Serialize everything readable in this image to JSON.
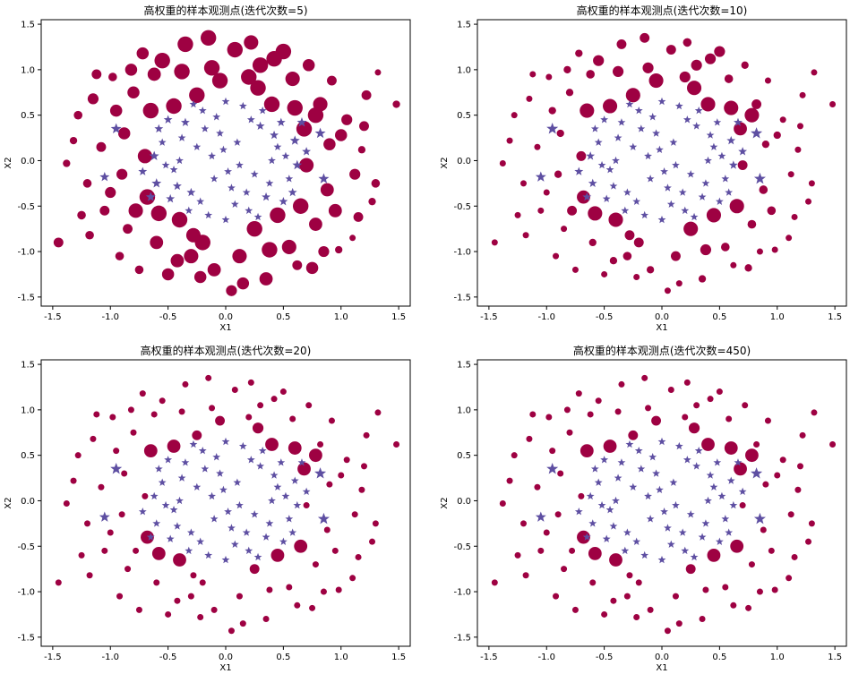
{
  "colors": {
    "class_dot": "#9e0142",
    "class_star": "#5e4fa2",
    "frame": "#000000",
    "background": "#ffffff"
  },
  "chart_data": [
    {
      "type": "scatter",
      "title": "高权重的样本观测点(迭代次数=5)",
      "xlabel": "X1",
      "ylabel": "X2",
      "xlim": [
        -1.6,
        1.6
      ],
      "ylim": [
        -1.6,
        1.55
      ],
      "xticks": [
        "-1.5",
        "-1.0",
        "-0.5",
        "0.0",
        "0.5",
        "1.0",
        "1.5"
      ],
      "yticks": [
        "-1.5",
        "-1.0",
        "-0.5",
        "0.0",
        "0.5",
        "1.0",
        "1.5"
      ],
      "marker_size_range": "large"
    },
    {
      "type": "scatter",
      "title": "高权重的样本观测点(迭代次数=10)",
      "xlabel": "X1",
      "ylabel": "X2",
      "xlim": [
        -1.6,
        1.6
      ],
      "ylim": [
        -1.6,
        1.55
      ],
      "xticks": [
        "-1.5",
        "-1.0",
        "-0.5",
        "0.0",
        "0.5",
        "1.0",
        "1.5"
      ],
      "yticks": [
        "-1.5",
        "-1.0",
        "-0.5",
        "0.0",
        "0.5",
        "1.0",
        "1.5"
      ],
      "marker_size_range": "medium"
    },
    {
      "type": "scatter",
      "title": "高权重的样本观测点(迭代次数=20)",
      "xlabel": "X1",
      "ylabel": "X2",
      "xlim": [
        -1.6,
        1.6
      ],
      "ylim": [
        -1.6,
        1.55
      ],
      "xticks": [
        "-1.5",
        "-1.0",
        "-0.5",
        "0.0",
        "0.5",
        "1.0",
        "1.5"
      ],
      "yticks": [
        "-1.5",
        "-1.0",
        "-0.5",
        "0.0",
        "0.5",
        "1.0",
        "1.5"
      ],
      "marker_size_range": "small"
    },
    {
      "type": "scatter",
      "title": "高权重的样本观测点(迭代次数=450)",
      "xlabel": "X1",
      "ylabel": "X2",
      "xlim": [
        -1.6,
        1.6
      ],
      "ylim": [
        -1.6,
        1.55
      ],
      "xticks": [
        "-1.5",
        "-1.0",
        "-0.5",
        "0.0",
        "0.5",
        "1.0",
        "1.5"
      ],
      "yticks": [
        "-1.5",
        "-1.0",
        "-0.5",
        "0.0",
        "0.5",
        "1.0",
        "1.5"
      ],
      "marker_size_range": "small"
    }
  ],
  "samples": {
    "dot_class": [
      [
        -1.45,
        -0.9
      ],
      [
        1.48,
        0.62
      ],
      [
        -1.38,
        -0.03
      ],
      [
        1.32,
        0.97
      ],
      [
        -1.28,
        0.5
      ],
      [
        1.27,
        -0.45
      ],
      [
        -1.2,
        -0.25
      ],
      [
        1.18,
        0.12
      ],
      [
        -1.15,
        0.68
      ],
      [
        1.1,
        -0.85
      ],
      [
        -1.05,
        -0.55
      ],
      [
        1.05,
        0.45
      ],
      [
        -0.98,
        0.92
      ],
      [
        0.98,
        -0.98
      ],
      [
        -0.92,
        -1.05
      ],
      [
        0.92,
        0.88
      ],
      [
        -0.88,
        0.3
      ],
      [
        0.88,
        -0.32
      ],
      [
        -0.85,
        -0.75
      ],
      [
        0.82,
        0.62
      ],
      [
        -0.8,
        0.75
      ],
      [
        0.78,
        -0.7
      ],
      [
        -0.75,
        -1.2
      ],
      [
        0.72,
        1.05
      ],
      [
        -0.7,
        0.05
      ],
      [
        0.7,
        -0.05
      ],
      [
        -0.68,
        -0.4
      ],
      [
        0.68,
        0.35
      ],
      [
        -0.62,
        0.95
      ],
      [
        0.62,
        -1.15
      ],
      [
        -0.6,
        -0.9
      ],
      [
        0.58,
        0.9
      ],
      [
        -0.55,
        1.1
      ],
      [
        0.55,
        -0.95
      ],
      [
        -0.5,
        -1.25
      ],
      [
        0.5,
        1.2
      ],
      [
        -0.45,
        0.6
      ],
      [
        0.45,
        -0.6
      ],
      [
        -0.4,
        -0.65
      ],
      [
        0.4,
        0.62
      ],
      [
        -0.35,
        1.28
      ],
      [
        0.35,
        -1.3
      ],
      [
        -0.3,
        -1.05
      ],
      [
        0.3,
        1.05
      ],
      [
        -0.25,
        0.72
      ],
      [
        0.25,
        -0.75
      ],
      [
        -0.2,
        -0.9
      ],
      [
        0.2,
        0.92
      ],
      [
        -0.15,
        1.35
      ],
      [
        0.15,
        -1.35
      ],
      [
        -0.1,
        -1.2
      ],
      [
        0.08,
        1.22
      ],
      [
        -0.05,
        0.88
      ],
      [
        0.05,
        -1.43
      ],
      [
        -1.08,
        0.15
      ],
      [
        1.12,
        -0.15
      ],
      [
        -1.0,
        -0.35
      ],
      [
        1.0,
        0.28
      ],
      [
        -0.95,
        0.55
      ],
      [
        0.95,
        -0.55
      ],
      [
        -1.25,
        -0.6
      ],
      [
        1.22,
        0.72
      ],
      [
        -1.12,
        0.95
      ],
      [
        1.15,
        -0.62
      ],
      [
        -0.9,
        -0.15
      ],
      [
        0.9,
        0.18
      ],
      [
        -0.82,
        1.0
      ],
      [
        0.85,
        -1.0
      ],
      [
        -0.78,
        -0.55
      ],
      [
        0.78,
        0.5
      ],
      [
        -0.65,
        0.55
      ],
      [
        0.65,
        -0.5
      ],
      [
        -0.58,
        -0.58
      ],
      [
        0.6,
        0.58
      ],
      [
        -0.42,
        -1.1
      ],
      [
        0.42,
        1.12
      ],
      [
        -0.38,
        0.98
      ],
      [
        0.38,
        -0.98
      ],
      [
        -0.22,
        -1.28
      ],
      [
        0.22,
        1.3
      ],
      [
        -0.12,
        1.02
      ],
      [
        0.12,
        -1.05
      ],
      [
        -1.32,
        0.22
      ],
      [
        1.3,
        -0.25
      ],
      [
        -1.18,
        -0.82
      ],
      [
        1.2,
        0.38
      ],
      [
        -0.72,
        1.18
      ],
      [
        0.75,
        -1.18
      ],
      [
        -0.28,
        -0.82
      ],
      [
        0.28,
        0.8
      ]
    ],
    "star_class": [
      [
        -0.55,
        0.2
      ],
      [
        0.55,
        -0.2
      ],
      [
        -0.45,
        -0.1
      ],
      [
        0.45,
        0.15
      ],
      [
        -0.35,
        0.42
      ],
      [
        0.35,
        -0.4
      ],
      [
        -0.3,
        -0.35
      ],
      [
        0.3,
        0.38
      ],
      [
        -0.2,
        0.55
      ],
      [
        0.2,
        -0.55
      ],
      [
        -0.15,
        -0.6
      ],
      [
        0.15,
        0.6
      ],
      [
        -0.05,
        0.3
      ],
      [
        0.05,
        -0.3
      ],
      [
        0.0,
        0.65
      ],
      [
        0.0,
        -0.65
      ],
      [
        -0.6,
        -0.25
      ],
      [
        0.6,
        0.22
      ],
      [
        -0.4,
        0.0
      ],
      [
        0.4,
        0.0
      ],
      [
        -0.25,
        0.15
      ],
      [
        0.25,
        -0.15
      ],
      [
        -0.1,
        -0.2
      ],
      [
        0.1,
        0.2
      ],
      [
        -0.5,
        0.45
      ],
      [
        0.5,
        -0.45
      ],
      [
        -0.48,
        -0.42
      ],
      [
        0.48,
        0.42
      ],
      [
        -0.18,
        0.35
      ],
      [
        0.18,
        -0.35
      ],
      [
        -0.32,
        -0.55
      ],
      [
        0.32,
        0.55
      ],
      [
        -0.62,
        0.05
      ],
      [
        0.62,
        -0.05
      ],
      [
        -0.08,
        0.48
      ],
      [
        0.08,
        -0.48
      ],
      [
        -0.38,
        0.25
      ],
      [
        0.38,
        -0.25
      ],
      [
        -0.22,
        -0.45
      ],
      [
        0.22,
        0.45
      ],
      [
        -0.52,
        -0.05
      ],
      [
        0.52,
        0.05
      ],
      [
        -0.12,
        0.05
      ],
      [
        0.12,
        -0.05
      ],
      [
        -0.28,
        0.62
      ],
      [
        0.28,
        -0.62
      ],
      [
        -0.42,
        -0.28
      ],
      [
        0.42,
        0.28
      ],
      [
        -1.05,
        -0.18
      ],
      [
        0.82,
        0.3
      ],
      [
        -0.95,
        0.35
      ],
      [
        0.85,
        -0.2
      ],
      [
        -0.72,
        -0.12
      ],
      [
        0.7,
        0.1
      ],
      [
        -0.02,
        0.12
      ],
      [
        0.02,
        -0.12
      ],
      [
        -0.58,
        0.35
      ],
      [
        0.58,
        -0.35
      ],
      [
        -0.65,
        -0.4
      ],
      [
        0.66,
        0.42
      ]
    ],
    "weights": {
      "dot_class": [
        [
          0.5,
          0.3,
          0.3,
          0.2,
          0.4,
          0.3,
          0.4,
          0.3,
          0.6,
          0.2,
          0.5,
          0.6,
          0.4,
          0.3,
          0.4,
          0.5,
          0.7,
          0.8,
          0.5,
          0.9,
          0.7,
          0.8,
          0.4,
          0.7,
          0.9,
          0.9,
          1.0,
          1.0,
          0.8,
          0.5,
          0.8,
          0.9,
          1.0,
          0.9,
          0.7,
          1.0,
          1.0,
          1.0,
          1.0,
          1.0,
          1.0,
          0.8,
          0.9,
          1.0,
          1.0,
          1.0,
          1.0,
          1.0,
          1.0,
          0.7,
          0.8,
          1.0,
          1.0,
          0.6,
          0.5,
          0.6,
          0.6,
          0.7,
          0.7,
          0.8,
          0.4,
          0.5,
          0.5,
          0.5,
          0.6,
          0.7,
          0.7,
          0.6,
          0.9,
          1.0,
          1.0,
          1.0,
          1.0,
          1.0,
          0.8,
          1.0,
          1.0,
          1.0,
          0.7,
          0.9,
          1.0,
          0.9,
          0.3,
          0.4,
          0.4,
          0.5,
          0.7,
          0.7,
          0.9,
          1.0
        ],
        [
          0.2,
          0.2,
          0.2,
          0.2,
          0.2,
          0.2,
          0.2,
          0.2,
          0.2,
          0.2,
          0.2,
          0.2,
          0.2,
          0.2,
          0.2,
          0.2,
          0.3,
          0.4,
          0.2,
          0.5,
          0.3,
          0.4,
          0.2,
          0.3,
          0.5,
          0.5,
          0.8,
          0.8,
          0.4,
          0.2,
          0.3,
          0.4,
          0.6,
          0.4,
          0.2,
          0.6,
          0.9,
          0.9,
          0.9,
          0.9,
          0.5,
          0.3,
          0.4,
          0.6,
          0.9,
          0.9,
          0.5,
          0.6,
          0.5,
          0.2,
          0.3,
          0.5,
          0.9,
          0.2,
          0.2,
          0.2,
          0.2,
          0.3,
          0.3,
          0.4,
          0.2,
          0.2,
          0.2,
          0.2,
          0.3,
          0.3,
          0.3,
          0.2,
          0.5,
          0.9,
          0.9,
          0.9,
          0.9,
          0.9,
          0.3,
          0.6,
          0.6,
          0.6,
          0.2,
          0.4,
          0.6,
          0.5,
          0.2,
          0.2,
          0.2,
          0.2,
          0.3,
          0.3,
          0.5,
          0.9
        ],
        [
          0.2,
          0.2,
          0.2,
          0.2,
          0.2,
          0.2,
          0.2,
          0.2,
          0.2,
          0.2,
          0.2,
          0.2,
          0.2,
          0.2,
          0.2,
          0.2,
          0.2,
          0.2,
          0.2,
          0.2,
          0.2,
          0.2,
          0.2,
          0.2,
          0.2,
          0.2,
          0.8,
          0.8,
          0.2,
          0.2,
          0.2,
          0.2,
          0.2,
          0.2,
          0.2,
          0.2,
          0.8,
          0.8,
          0.8,
          0.8,
          0.2,
          0.2,
          0.2,
          0.2,
          0.5,
          0.5,
          0.2,
          0.2,
          0.2,
          0.2,
          0.2,
          0.2,
          0.5,
          0.2,
          0.2,
          0.2,
          0.2,
          0.2,
          0.2,
          0.2,
          0.2,
          0.2,
          0.2,
          0.2,
          0.2,
          0.2,
          0.2,
          0.2,
          0.2,
          0.8,
          0.8,
          0.8,
          0.8,
          0.8,
          0.2,
          0.2,
          0.2,
          0.2,
          0.2,
          0.2,
          0.2,
          0.2,
          0.2,
          0.2,
          0.2,
          0.2,
          0.2,
          0.2,
          0.2,
          0.6
        ],
        [
          0.2,
          0.2,
          0.2,
          0.2,
          0.2,
          0.2,
          0.2,
          0.2,
          0.2,
          0.2,
          0.2,
          0.2,
          0.2,
          0.2,
          0.2,
          0.2,
          0.2,
          0.2,
          0.2,
          0.2,
          0.2,
          0.2,
          0.2,
          0.2,
          0.2,
          0.2,
          0.8,
          0.8,
          0.2,
          0.2,
          0.2,
          0.2,
          0.2,
          0.2,
          0.2,
          0.2,
          0.8,
          0.8,
          0.8,
          0.8,
          0.2,
          0.2,
          0.2,
          0.2,
          0.5,
          0.5,
          0.2,
          0.2,
          0.2,
          0.2,
          0.2,
          0.2,
          0.5,
          0.2,
          0.2,
          0.2,
          0.2,
          0.2,
          0.2,
          0.2,
          0.2,
          0.2,
          0.2,
          0.2,
          0.2,
          0.2,
          0.2,
          0.2,
          0.2,
          0.8,
          0.8,
          0.8,
          0.8,
          0.8,
          0.2,
          0.2,
          0.2,
          0.2,
          0.2,
          0.2,
          0.2,
          0.2,
          0.2,
          0.2,
          0.2,
          0.2,
          0.2,
          0.2,
          0.2,
          0.6
        ]
      ],
      "star_class": [
        [
          0.3,
          0.3,
          0.3,
          0.3,
          0.4,
          0.4,
          0.4,
          0.4,
          0.3,
          0.3,
          0.3,
          0.3,
          0.3,
          0.3,
          0.3,
          0.3,
          0.5,
          0.5,
          0.3,
          0.3,
          0.3,
          0.3,
          0.3,
          0.3,
          0.4,
          0.4,
          0.4,
          0.4,
          0.3,
          0.3,
          0.3,
          0.3,
          0.5,
          0.5,
          0.3,
          0.3,
          0.3,
          0.3,
          0.3,
          0.3,
          0.3,
          0.3,
          0.3,
          0.3,
          0.3,
          0.3,
          0.4,
          0.4,
          0.5,
          0.6,
          0.6,
          0.6,
          0.4,
          0.4,
          0.3,
          0.3,
          0.4,
          0.4,
          0.5,
          0.5
        ],
        [
          0.3,
          0.3,
          0.3,
          0.3,
          0.3,
          0.3,
          0.3,
          0.3,
          0.3,
          0.3,
          0.3,
          0.3,
          0.3,
          0.3,
          0.3,
          0.3,
          0.4,
          0.4,
          0.3,
          0.3,
          0.3,
          0.3,
          0.3,
          0.3,
          0.3,
          0.3,
          0.3,
          0.3,
          0.3,
          0.3,
          0.3,
          0.3,
          0.4,
          0.4,
          0.3,
          0.3,
          0.3,
          0.3,
          0.3,
          0.3,
          0.3,
          0.3,
          0.3,
          0.3,
          0.3,
          0.3,
          0.3,
          0.3,
          0.6,
          0.7,
          0.7,
          0.7,
          0.4,
          0.4,
          0.3,
          0.3,
          0.3,
          0.3,
          0.4,
          0.4
        ],
        [
          0.3,
          0.3,
          0.3,
          0.3,
          0.3,
          0.3,
          0.3,
          0.3,
          0.3,
          0.3,
          0.3,
          0.3,
          0.3,
          0.3,
          0.3,
          0.3,
          0.3,
          0.3,
          0.3,
          0.3,
          0.3,
          0.3,
          0.3,
          0.3,
          0.3,
          0.3,
          0.3,
          0.3,
          0.3,
          0.3,
          0.3,
          0.3,
          0.3,
          0.3,
          0.3,
          0.3,
          0.3,
          0.3,
          0.3,
          0.3,
          0.3,
          0.3,
          0.3,
          0.3,
          0.3,
          0.3,
          0.3,
          0.3,
          0.6,
          0.7,
          0.7,
          0.7,
          0.3,
          0.3,
          0.3,
          0.3,
          0.3,
          0.3,
          0.3,
          0.3
        ],
        [
          0.3,
          0.3,
          0.3,
          0.3,
          0.3,
          0.3,
          0.3,
          0.3,
          0.3,
          0.3,
          0.3,
          0.3,
          0.3,
          0.3,
          0.3,
          0.3,
          0.3,
          0.3,
          0.3,
          0.3,
          0.3,
          0.3,
          0.3,
          0.3,
          0.3,
          0.3,
          0.3,
          0.3,
          0.3,
          0.3,
          0.3,
          0.3,
          0.3,
          0.3,
          0.3,
          0.3,
          0.3,
          0.3,
          0.3,
          0.3,
          0.3,
          0.3,
          0.3,
          0.3,
          0.3,
          0.3,
          0.3,
          0.3,
          0.6,
          0.7,
          0.7,
          0.7,
          0.3,
          0.3,
          0.3,
          0.3,
          0.3,
          0.3,
          0.3,
          0.3
        ]
      ]
    }
  }
}
